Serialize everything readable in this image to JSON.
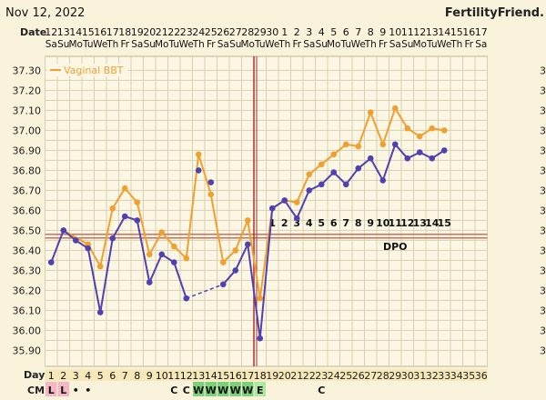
{
  "header": {
    "date": "Nov 12, 2022",
    "brand": "FertilityFriend."
  },
  "row_labels": {
    "date": "Date",
    "day": "Day",
    "cm": "CM"
  },
  "colors": {
    "background": "#faf3dc",
    "grid": "#d8d0b2",
    "vaginal_bbt": "#f0a030",
    "temp_line": "#5040b0",
    "coverline": "#c87060",
    "ovulation": "#b03030"
  },
  "chart_data": {
    "type": "line",
    "ylim": [
      35.8,
      37.35
    ],
    "y_ticks": [
      "37.30",
      "37.20",
      "37.10",
      "37.00",
      "36.90",
      "36.80",
      "36.70",
      "36.60",
      "36.50",
      "36.40",
      "36.30",
      "36.20",
      "36.10",
      "36.00",
      "35.90"
    ],
    "dates": [
      "12",
      "13",
      "14",
      "15",
      "16",
      "17",
      "18",
      "19",
      "20",
      "21",
      "22",
      "23",
      "24",
      "25",
      "26",
      "27",
      "28",
      "29",
      "30",
      "1",
      "2",
      "3",
      "4",
      "5",
      "6",
      "7",
      "8",
      "9",
      "10",
      "11",
      "12",
      "13",
      "14",
      "15",
      "16",
      "17"
    ],
    "weekdays": [
      "Sa",
      "Su",
      "Mo",
      "Tu",
      "We",
      "Th",
      "Fr",
      "Sa",
      "Su",
      "Mo",
      "Tu",
      "We",
      "Th",
      "Fr",
      "Sa",
      "Su",
      "Mo",
      "Tu",
      "We",
      "Th",
      "Fr",
      "Sa",
      "Su",
      "Mo",
      "Tu",
      "We",
      "Th",
      "Fr",
      "Sa",
      "Su",
      "Mo",
      "Tu",
      "We",
      "Th",
      "Fr",
      "Sa"
    ],
    "cycle_days": [
      "1",
      "2",
      "3",
      "4",
      "5",
      "6",
      "7",
      "8",
      "9",
      "10",
      "11",
      "12",
      "13",
      "14",
      "15",
      "16",
      "17",
      "18",
      "19",
      "20",
      "21",
      "22",
      "23",
      "24",
      "25",
      "26",
      "27",
      "28",
      "29",
      "30",
      "31",
      "32",
      "33",
      "34",
      "35",
      "36"
    ],
    "cm": [
      "L",
      "L",
      "•",
      "•",
      "",
      "",
      "",
      "",
      "",
      "",
      "C",
      "C",
      "W",
      "W",
      "W",
      "W",
      "W",
      "E",
      "",
      "",
      "",
      "",
      "C",
      "",
      "",
      "",
      "",
      "",
      "",
      "",
      "",
      "",
      "",
      "",
      "",
      ""
    ],
    "series": [
      {
        "name": "Vaginal BBT",
        "values": [
          null,
          36.5,
          null,
          36.43,
          36.32,
          36.61,
          36.71,
          36.64,
          36.38,
          36.49,
          36.42,
          36.36,
          36.88,
          36.68,
          36.34,
          36.4,
          36.55,
          36.16,
          36.61,
          36.65,
          36.64,
          36.78,
          36.83,
          36.88,
          36.93,
          36.92,
          37.09,
          36.93,
          37.11,
          37.01,
          36.97,
          37.01,
          37.0,
          null,
          null,
          null
        ]
      },
      {
        "values": [
          36.34,
          36.5,
          36.45,
          36.41,
          36.09,
          36.46,
          36.57,
          36.55,
          36.24,
          36.38,
          36.34,
          36.16,
          36.8,
          36.74,
          36.23,
          36.3,
          36.43,
          35.96,
          36.61,
          36.65,
          36.56,
          36.7,
          36.73,
          36.79,
          36.73,
          36.81,
          36.86,
          36.75,
          36.93,
          36.86,
          36.89,
          36.86,
          36.9,
          null,
          null,
          null
        ]
      }
    ],
    "dashed_gap": [
      11,
      14
    ],
    "hidden_segments": [
      [
        11,
        12
      ],
      [
        12,
        13
      ],
      [
        13,
        14
      ]
    ],
    "coverline": 36.48,
    "ovulation_day_index": 17,
    "dpo_label": "DPO",
    "dpo_numbers": [
      "1",
      "2",
      "3",
      "4",
      "5",
      "6",
      "7",
      "8",
      "9",
      "10",
      "11",
      "12",
      "13",
      "14",
      "15"
    ],
    "dpo_start_index": 18
  }
}
